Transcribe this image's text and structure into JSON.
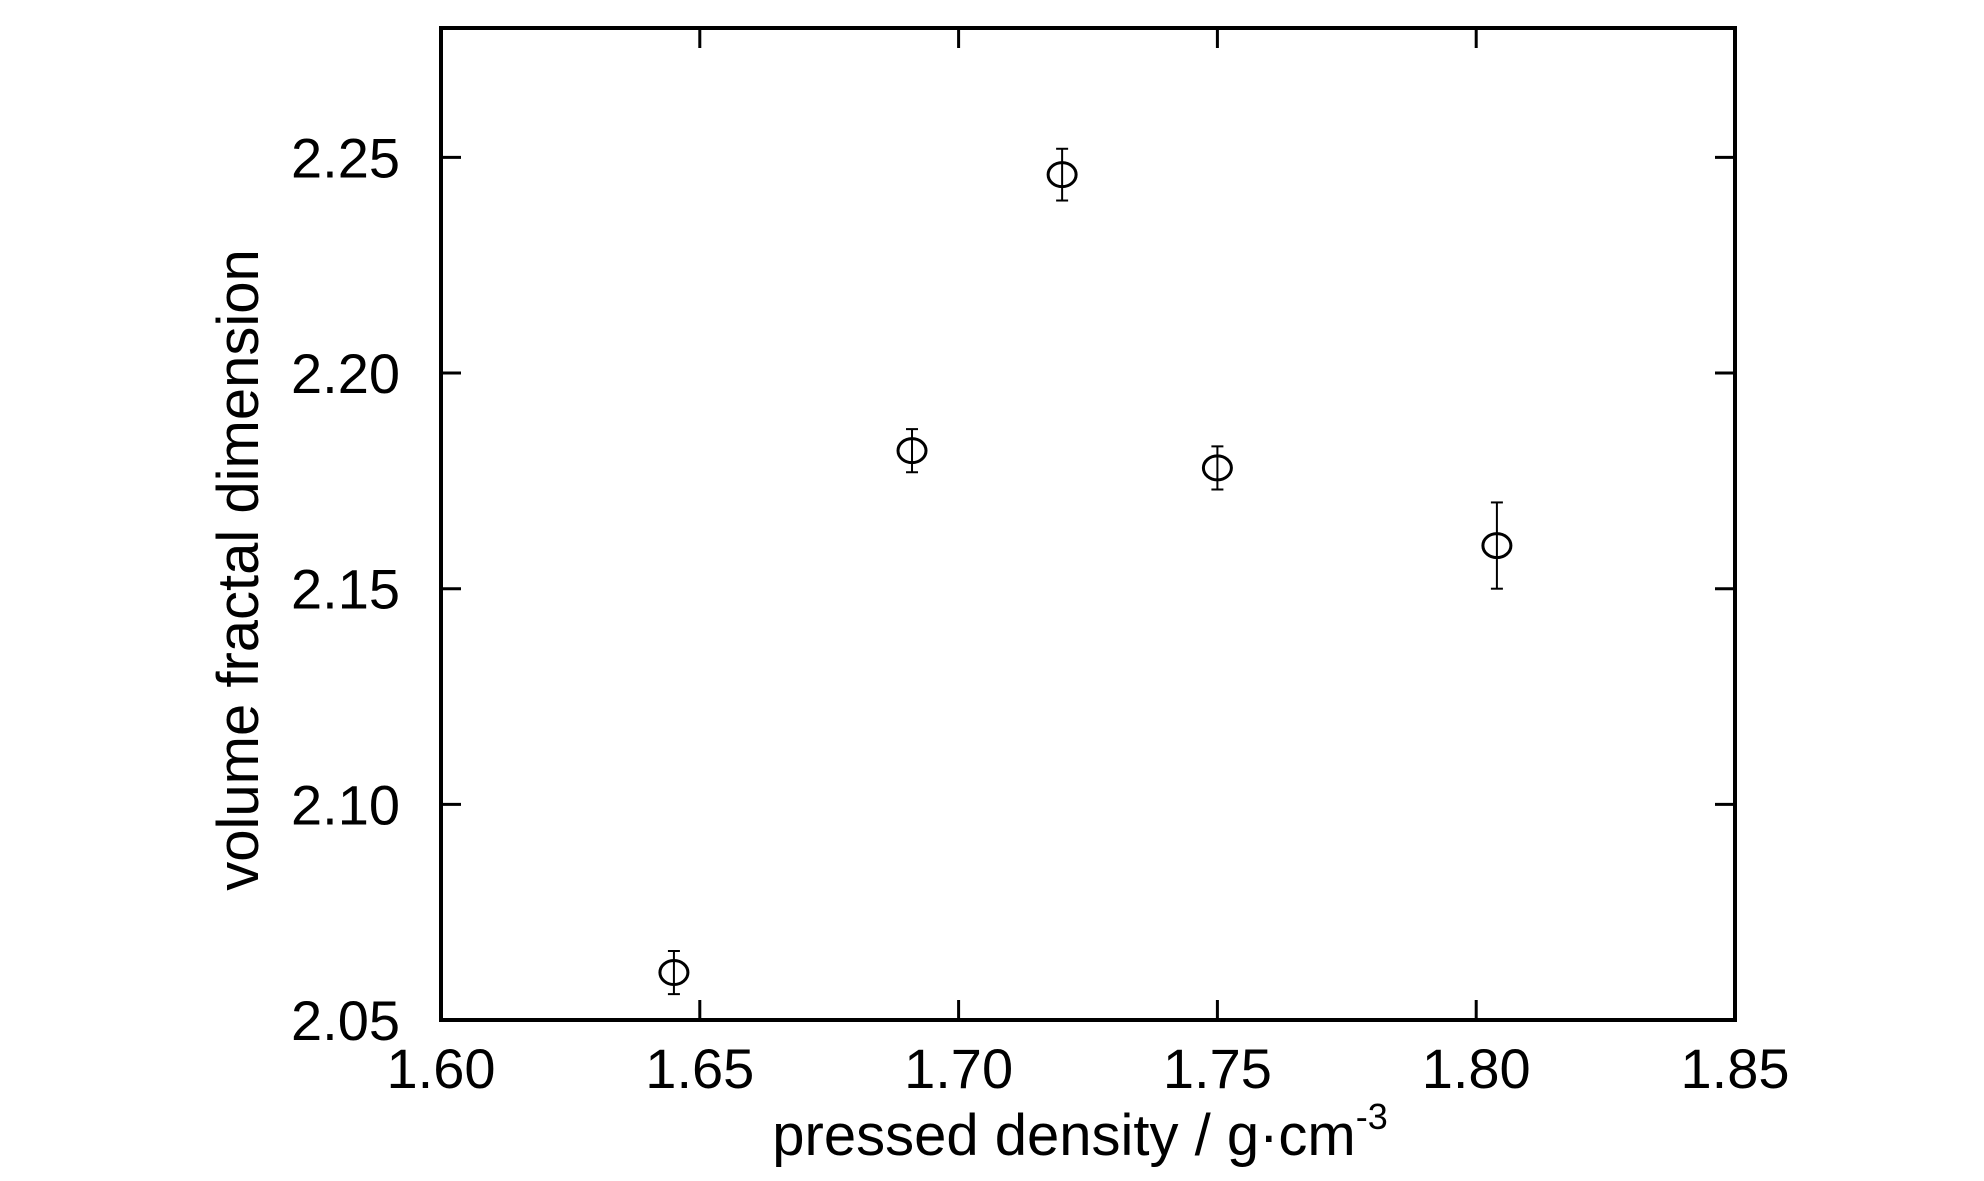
{
  "chart_data": {
    "type": "scatter",
    "title": "",
    "xlabel": "pressed density / g·cm",
    "xlabel_superscript": "-3",
    "ylabel": "volume fractal dimension",
    "xlim": [
      1.6,
      1.85
    ],
    "ylim": [
      2.05,
      2.28
    ],
    "xticks": [
      1.6,
      1.65,
      1.7,
      1.75,
      1.8,
      1.85
    ],
    "xtick_labels": [
      "1.60",
      "1.65",
      "1.70",
      "1.75",
      "1.80",
      "1.85"
    ],
    "yticks": [
      2.05,
      2.1,
      2.15,
      2.2,
      2.25
    ],
    "ytick_labels": [
      "2.05",
      "2.10",
      "2.15",
      "2.20",
      "2.25"
    ],
    "grid": false,
    "marker": "open-circle",
    "points": [
      {
        "x": 1.645,
        "y": 2.061,
        "err": 0.005
      },
      {
        "x": 1.691,
        "y": 2.182,
        "err": 0.005
      },
      {
        "x": 1.72,
        "y": 2.246,
        "err": 0.006
      },
      {
        "x": 1.75,
        "y": 2.178,
        "err": 0.005
      },
      {
        "x": 1.804,
        "y": 2.16,
        "err": 0.01
      }
    ]
  }
}
